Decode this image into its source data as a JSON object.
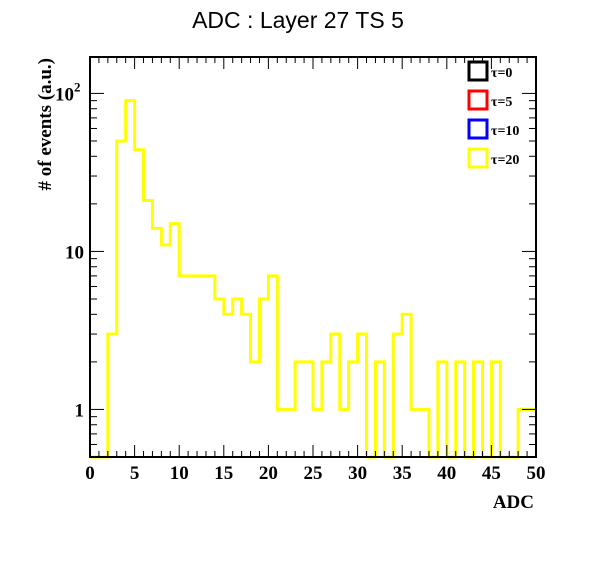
{
  "chart_data": {
    "type": "line",
    "title": "ADC : Layer 27 TS 5",
    "xlabel": "ADC",
    "ylabel": "# of events (a.u.)",
    "xlim": [
      0,
      50
    ],
    "ylim": [
      0.5,
      170
    ],
    "yscale": "log",
    "grid": false,
    "legend_position": "top-right",
    "x_ticks": [
      0,
      5,
      10,
      15,
      20,
      25,
      30,
      35,
      40,
      45,
      50
    ],
    "y_ticks": [
      {
        "value": 1,
        "label": "1"
      },
      {
        "value": 10,
        "label": "10"
      },
      {
        "value": 100,
        "label": "10",
        "sup": "2"
      }
    ],
    "legend": [
      {
        "label": "τ=0",
        "color": "#000000"
      },
      {
        "label": "τ=5",
        "color": "#ff0000"
      },
      {
        "label": "τ=10",
        "color": "#0000ff"
      },
      {
        "label": "τ=20",
        "color": "#ffff00"
      }
    ],
    "series": [
      {
        "name": "τ=20",
        "color": "#ffff00",
        "bin_width": 1,
        "x": [
          0,
          1,
          2,
          3,
          4,
          5,
          6,
          7,
          8,
          9,
          10,
          11,
          12,
          13,
          14,
          15,
          16,
          17,
          18,
          19,
          20,
          21,
          22,
          23,
          24,
          25,
          26,
          27,
          28,
          29,
          30,
          31,
          32,
          33,
          34,
          35,
          36,
          37,
          38,
          39,
          40,
          41,
          42,
          43,
          44,
          45,
          46,
          47,
          48,
          49
        ],
        "values": [
          0.5,
          0.5,
          3,
          50,
          90,
          44,
          21,
          14,
          11,
          15,
          7,
          7,
          7,
          7,
          5,
          4,
          5,
          4,
          2,
          5,
          7,
          1,
          1,
          2,
          2,
          1,
          2,
          3,
          1,
          2,
          3,
          0.5,
          2,
          0.5,
          3,
          4,
          1,
          1,
          0.5,
          2,
          0.5,
          2,
          0.5,
          2,
          0.5,
          2,
          0.5,
          0.5,
          1,
          1
        ]
      }
    ]
  }
}
